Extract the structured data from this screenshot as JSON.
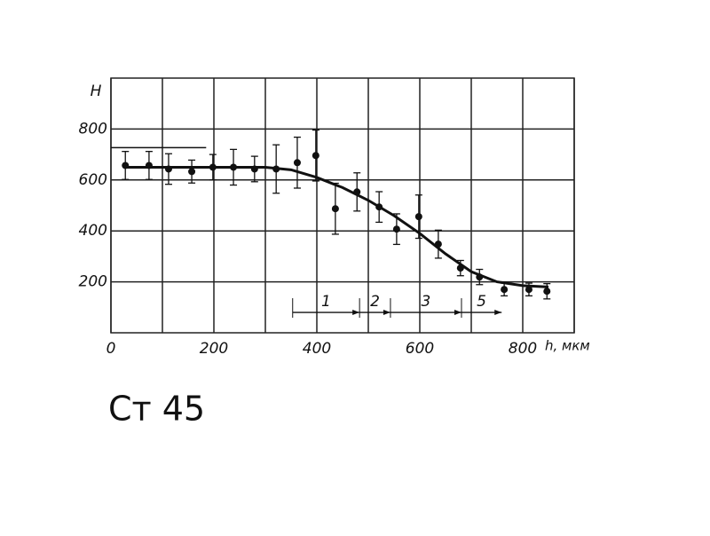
{
  "chart_data": {
    "type": "scatter",
    "caption": "Ст 45",
    "ylabel": "H",
    "xlabel": "h, мкм",
    "xlim": [
      0,
      900
    ],
    "ylim": [
      0,
      1000
    ],
    "xticks": [
      0,
      200,
      400,
      600,
      800
    ],
    "x_minor_ticks": [
      100,
      300,
      500,
      700,
      900
    ],
    "yticks": [
      200,
      400,
      600,
      800
    ],
    "grid": true,
    "color": "#111111",
    "series": [
      {
        "x": [
          28,
          74,
          112,
          157,
          198,
          238,
          279,
          321,
          362,
          398,
          436,
          478,
          521,
          555,
          598,
          636,
          679,
          716,
          764,
          812,
          847
        ],
        "values": [
          657,
          657,
          643,
          633,
          650,
          650,
          643,
          643,
          668,
          696,
          487,
          553,
          494,
          407,
          456,
          348,
          254,
          219,
          170,
          170,
          163
        ],
        "errors": [
          55,
          55,
          60,
          45,
          50,
          70,
          50,
          95,
          100,
          100,
          100,
          75,
          60,
          60,
          85,
          55,
          30,
          30,
          25,
          25,
          30
        ]
      }
    ],
    "fit": {
      "x": [
        28,
        300,
        350,
        400,
        450,
        500,
        550,
        600,
        650,
        700,
        750,
        800,
        850
      ],
      "values": [
        650,
        650,
        640,
        610,
        570,
        520,
        460,
        390,
        310,
        240,
        200,
        185,
        180
      ]
    },
    "reference": {
      "x": [
        0,
        185
      ],
      "values": [
        727,
        727
      ]
    },
    "zones": [
      {
        "label": "1",
        "from": 353,
        "to": 483
      },
      {
        "label": "2",
        "from": 483,
        "to": 543
      },
      {
        "label": "3",
        "from": 543,
        "to": 681
      },
      {
        "label": "5",
        "from": 681,
        "to": 759
      }
    ],
    "zone_level": 80
  }
}
